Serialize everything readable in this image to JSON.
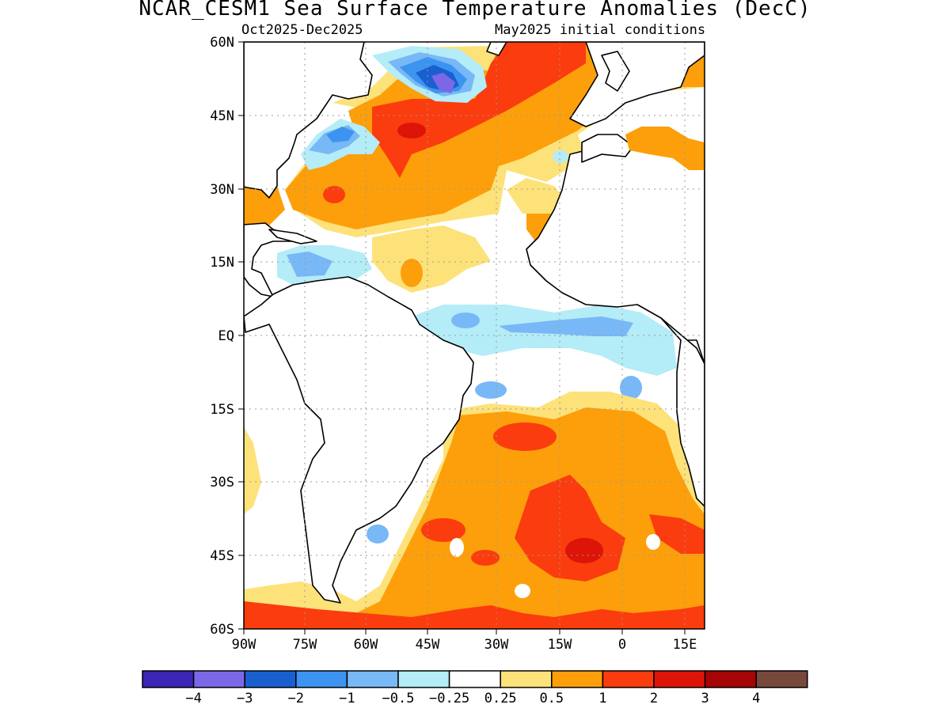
{
  "header": {
    "title": "NCAR_CESM1 Sea Surface Temperature Anomalies (DecC)",
    "period": "Oct2025-Dec2025",
    "initial_conditions": "May2025 initial conditions"
  },
  "map": {
    "lat_labels": [
      "60N",
      "45N",
      "30N",
      "15N",
      "EQ",
      "15S",
      "30S",
      "45S",
      "60S"
    ],
    "lon_labels": [
      "90W",
      "75W",
      "60W",
      "45W",
      "30W",
      "15W",
      "0",
      "15E"
    ]
  },
  "colorbar": {
    "colors": [
      "#3b25b4",
      "#7b68e6",
      "#1a5fd0",
      "#3c94f0",
      "#78b8f7",
      "#b4ecf7",
      "#ffffff",
      "#fde27a",
      "#fc9f0a",
      "#fb3c0e",
      "#dd1408",
      "#a60505",
      "#77493c"
    ],
    "labels": [
      "−4",
      "−3",
      "−2",
      "−1",
      "−0.5",
      "−0.25",
      "0.25",
      "0.5",
      "1",
      "2",
      "3",
      "4"
    ]
  },
  "colors": {
    "land": "#ffffff",
    "coast": "#000000",
    "grid": "#9a9a9a"
  }
}
